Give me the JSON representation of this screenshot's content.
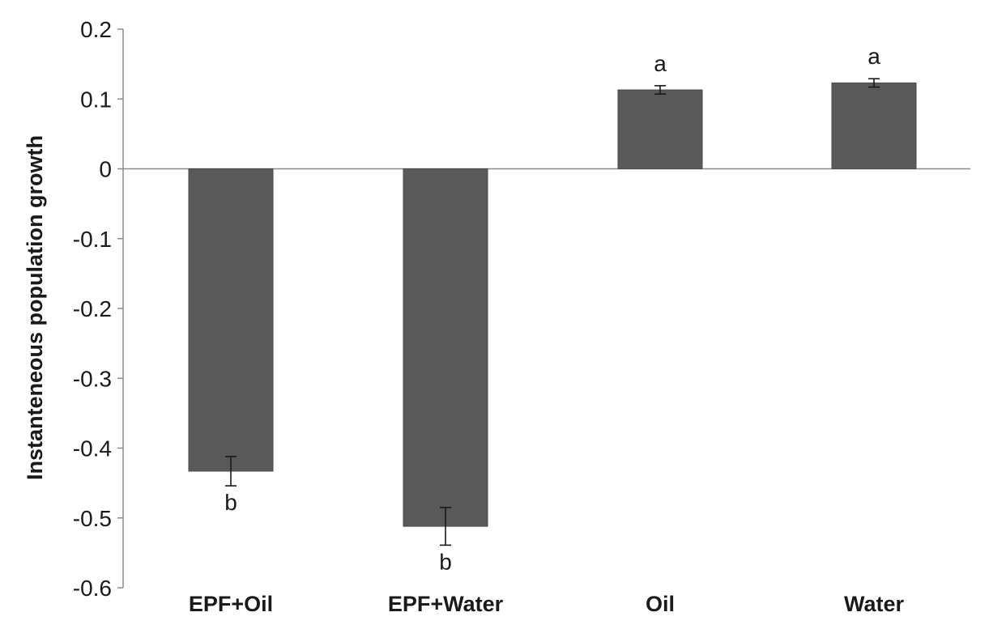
{
  "chart_data": {
    "type": "bar",
    "title": "",
    "xlabel": "",
    "ylabel": "Instanteneous population growth",
    "ylim": [
      -0.6,
      0.2
    ],
    "yticks": [
      0.2,
      0.1,
      0,
      -0.1,
      -0.2,
      -0.3,
      -0.4,
      -0.5,
      -0.6
    ],
    "ytick_labels": [
      "0.2",
      "0.1",
      "0",
      "-0.1",
      "-0.2",
      "-0.3",
      "-0.4",
      "-0.5",
      "-0.6"
    ],
    "categories": [
      "EPF+Oil",
      "EPF+Water",
      "Oil",
      "Water"
    ],
    "values": [
      -0.433,
      -0.512,
      0.113,
      0.123
    ],
    "errors": [
      0.021,
      0.027,
      0.006,
      0.006
    ],
    "significance_letters": [
      "b",
      "b",
      "a",
      "a"
    ],
    "grid": false,
    "legend": "none",
    "bar_color": "#595959"
  }
}
